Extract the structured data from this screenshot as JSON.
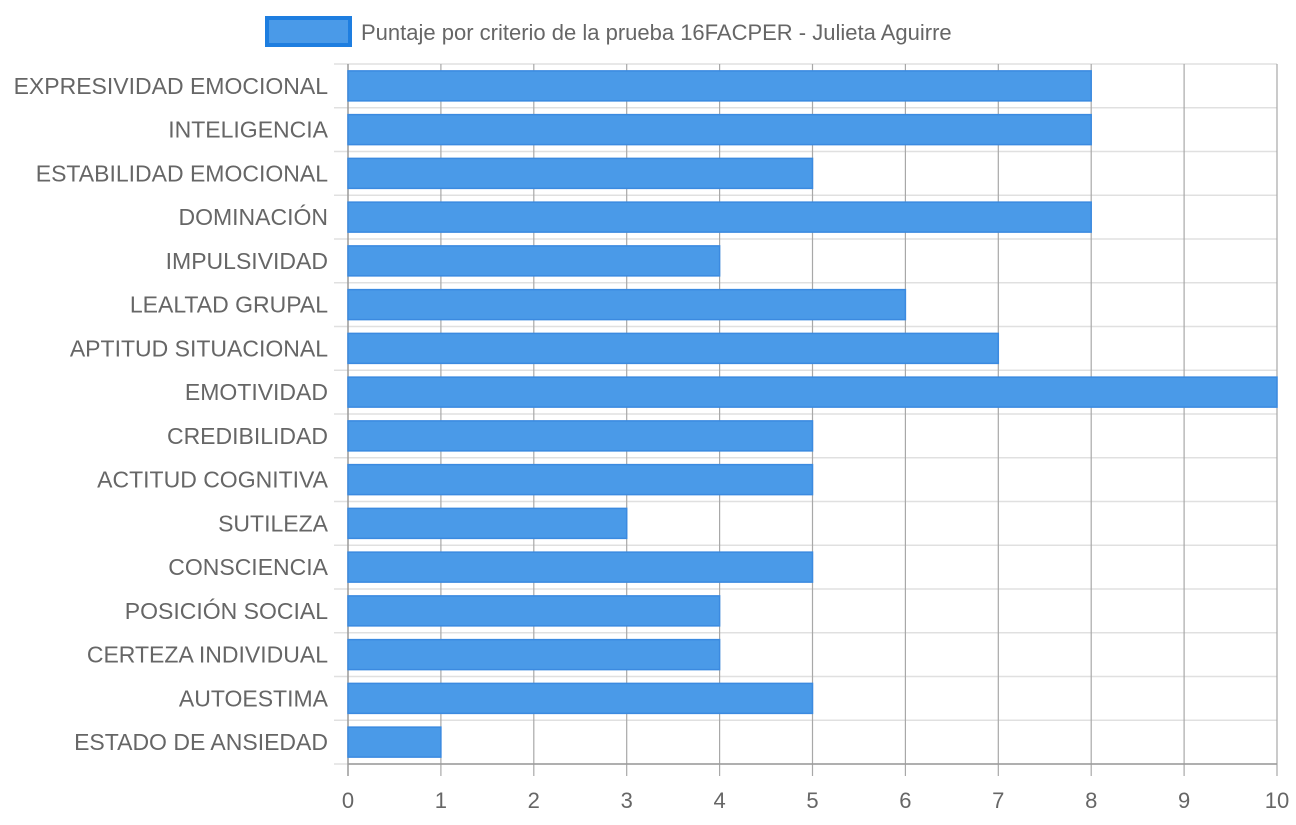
{
  "chart_data": {
    "type": "bar",
    "orientation": "horizontal",
    "categories": [
      "EXPRESIVIDAD EMOCIONAL",
      "INTELIGENCIA",
      "ESTABILIDAD EMOCIONAL",
      "DOMINACIÓN",
      "IMPULSIVIDAD",
      "LEALTAD GRUPAL",
      "APTITUD SITUACIONAL",
      "EMOTIVIDAD",
      "CREDIBILIDAD",
      "ACTITUD COGNITIVA",
      "SUTILEZA",
      "CONSCIENCIA",
      "POSICIÓN SOCIAL",
      "CERTEZA INDIVIDUAL",
      "AUTOESTIMA",
      "ESTADO DE ANSIEDAD"
    ],
    "series": [
      {
        "name": "Puntaje por criterio de la prueba 16FACPER - Julieta Aguirre",
        "values": [
          8,
          8,
          5,
          8,
          4,
          6,
          7,
          10,
          5,
          5,
          3,
          5,
          4,
          4,
          5,
          1
        ]
      }
    ],
    "xlim": [
      0,
      10
    ],
    "x_ticks": [
      "0",
      "1",
      "2",
      "3",
      "4",
      "5",
      "6",
      "7",
      "8",
      "9",
      "10"
    ],
    "grid": true,
    "legend_position": "top",
    "colors": {
      "bar_fill": "#4a9ae8",
      "bar_border": "#3b8ae0",
      "legend_border": "#1e7ee0",
      "grid": "#e0e0e0",
      "grid_vertical": "#a8a8a8",
      "axis": "#9a9a9a",
      "text": "#666666"
    }
  }
}
